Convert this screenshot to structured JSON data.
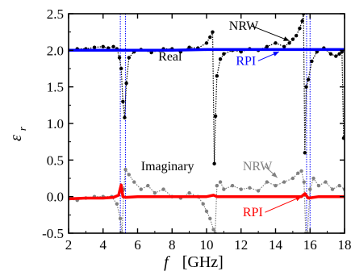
{
  "chart_data": {
    "type": "line",
    "xlabel": "f",
    "xlabel_unit": "[GHz]",
    "ylabel": "ε",
    "ylabel_subscript": "r",
    "xlim": [
      2,
      18
    ],
    "ylim": [
      -0.5,
      2.5
    ],
    "x_ticks": [
      2,
      4,
      6,
      8,
      10,
      12,
      14,
      16,
      18
    ],
    "y_ticks": [
      -0.5,
      0.0,
      0.5,
      1.0,
      1.5,
      2.0,
      2.5
    ],
    "x_tick_labels": [
      "2",
      "4",
      "6",
      "8",
      "10",
      "12",
      "14",
      "16",
      "18"
    ],
    "y_tick_labels": [
      "-0.5",
      "0.0",
      "0.5",
      "1.0",
      "1.5",
      "2.0",
      "2.5"
    ],
    "grid": false,
    "vertical_reference_lines": {
      "color": "#0000ff",
      "x": [
        5.0,
        5.3,
        15.8,
        16.0
      ]
    },
    "annotations": [
      {
        "text": "NRW",
        "x": 11.3,
        "y": 2.28,
        "arrow_to": [
          14.8,
          2.13
        ],
        "color": "#000000"
      },
      {
        "text": "Real",
        "x": 7.2,
        "y": 1.86,
        "color": "#000000"
      },
      {
        "text": "RPI",
        "x": 11.7,
        "y": 1.8,
        "arrow_to": [
          14.2,
          1.98
        ],
        "color": "#0000ff"
      },
      {
        "text": "Imaginary",
        "x": 6.2,
        "y": 0.36,
        "color": "#000000"
      },
      {
        "text": "NRW",
        "x": 12.1,
        "y": 0.36,
        "arrow_to": [
          14.1,
          0.26
        ],
        "color": "#808080"
      },
      {
        "text": "RPI",
        "x": 12.1,
        "y": -0.27,
        "arrow_to": [
          15.5,
          0.0
        ],
        "color": "#ff0000"
      }
    ],
    "series": [
      {
        "color": "#000000",
        "style": "dotted-markers",
        "x": [
          2.0,
          2.5,
          3.0,
          3.5,
          4.0,
          4.3,
          4.6,
          4.8,
          4.95,
          5.05,
          5.15,
          5.25,
          5.35,
          5.5,
          5.8,
          6.2,
          6.8,
          7.5,
          8.0,
          8.5,
          9.0,
          9.5,
          10.0,
          10.2,
          10.35,
          10.45,
          10.52,
          10.6,
          10.8,
          11.0,
          11.5,
          12.0,
          12.5,
          13.0,
          13.5,
          14.0,
          14.5,
          14.8,
          15.0,
          15.2,
          15.4,
          15.55,
          15.62,
          15.7,
          15.78,
          15.9,
          16.1,
          16.4,
          16.8,
          17.2,
          17.5,
          17.7,
          17.85,
          17.95
        ],
        "y": [
          2.0,
          2.02,
          2.02,
          2.04,
          2.05,
          2.03,
          2.05,
          2.02,
          1.9,
          1.75,
          1.3,
          1.08,
          1.55,
          1.9,
          1.98,
          2.01,
          1.97,
          2.02,
          2.02,
          1.98,
          2.04,
          2.03,
          2.1,
          2.18,
          2.25,
          0.45,
          1.1,
          1.65,
          1.88,
          1.95,
          2.0,
          1.98,
          2.02,
          2.0,
          2.05,
          2.1,
          2.05,
          2.1,
          2.15,
          2.2,
          2.3,
          2.4,
          2.5,
          0.6,
          1.5,
          1.6,
          1.85,
          1.98,
          2.03,
          1.95,
          1.92,
          1.95,
          1.98,
          0.8
        ]
      },
      {
        "name": "RPI",
        "color": "#0000ff",
        "style": "line",
        "x": [
          2.0,
          4.0,
          6.0,
          8.0,
          10.0,
          12.0,
          14.0,
          16.0,
          18.0
        ],
        "y": [
          2.0,
          2.0,
          2.0,
          2.0,
          2.01,
          2.01,
          2.01,
          2.01,
          2.01
        ]
      },
      {
        "color": "#808080",
        "style": "dotted-markers",
        "x": [
          2.0,
          2.5,
          3.0,
          3.5,
          4.0,
          4.5,
          4.8,
          5.0,
          5.1,
          5.2,
          5.3,
          5.5,
          5.8,
          6.2,
          6.6,
          7.0,
          7.5,
          8.0,
          8.5,
          9.0,
          9.5,
          9.8,
          10.0,
          10.2,
          10.4,
          10.5,
          10.6,
          10.8,
          11.0,
          11.5,
          12.0,
          12.5,
          13.0,
          13.5,
          14.0,
          14.5,
          15.0,
          15.3,
          15.5,
          15.65,
          15.75,
          15.85,
          16.0,
          16.2,
          16.5,
          16.9,
          17.3,
          17.7,
          18.0
        ],
        "y": [
          -0.03,
          -0.05,
          -0.02,
          0.0,
          0.0,
          0.0,
          -0.1,
          -0.3,
          -0.5,
          0.1,
          0.37,
          0.3,
          0.2,
          0.1,
          0.15,
          0.05,
          0.1,
          0.0,
          -0.02,
          0.05,
          0.0,
          -0.1,
          -0.2,
          -0.3,
          -0.45,
          -0.5,
          0.15,
          0.2,
          0.1,
          0.15,
          0.1,
          0.12,
          0.08,
          0.2,
          0.15,
          0.2,
          0.25,
          0.32,
          0.35,
          0.2,
          -0.5,
          -0.5,
          0.1,
          0.25,
          0.15,
          0.2,
          0.1,
          0.15,
          0.1
        ]
      },
      {
        "name": "RPI",
        "color": "#ff0000",
        "style": "line",
        "x": [
          2.0,
          3.0,
          4.0,
          4.6,
          4.9,
          5.05,
          5.15,
          5.3,
          6.0,
          8.0,
          10.0,
          10.4,
          10.6,
          12.0,
          14.0,
          15.5,
          15.7,
          15.9,
          16.5,
          18.0
        ],
        "y": [
          -0.03,
          -0.02,
          -0.02,
          -0.01,
          0.02,
          0.16,
          0.0,
          -0.01,
          0.0,
          0.0,
          0.0,
          0.02,
          0.0,
          0.0,
          0.0,
          0.0,
          0.04,
          -0.02,
          0.0,
          0.0
        ]
      }
    ]
  }
}
